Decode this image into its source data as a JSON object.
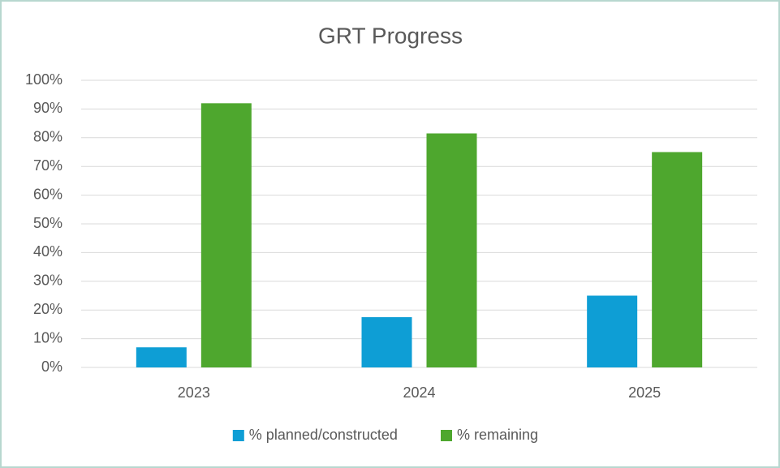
{
  "chart_data": {
    "type": "bar",
    "title": "GRT Progress",
    "categories": [
      "2023",
      "2024",
      "2025"
    ],
    "series": [
      {
        "name": "% planned/constructed",
        "color": "#0e9ed5",
        "values": [
          7,
          17.5,
          25
        ]
      },
      {
        "name": "% remaining",
        "color": "#4ea72e",
        "values": [
          92,
          81.5,
          75
        ]
      }
    ],
    "ylim": [
      0,
      100
    ],
    "yticks": [
      {
        "value": 0,
        "label": "0%"
      },
      {
        "value": 10,
        "label": "10%"
      },
      {
        "value": 20,
        "label": "20%"
      },
      {
        "value": 30,
        "label": "30%"
      },
      {
        "value": 40,
        "label": "40%"
      },
      {
        "value": 50,
        "label": "50%"
      },
      {
        "value": 60,
        "label": "60%"
      },
      {
        "value": 70,
        "label": "70%"
      },
      {
        "value": 80,
        "label": "80%"
      },
      {
        "value": 90,
        "label": "90%"
      },
      {
        "value": 100,
        "label": "100%"
      }
    ],
    "grid": true,
    "legend": "bottom"
  }
}
